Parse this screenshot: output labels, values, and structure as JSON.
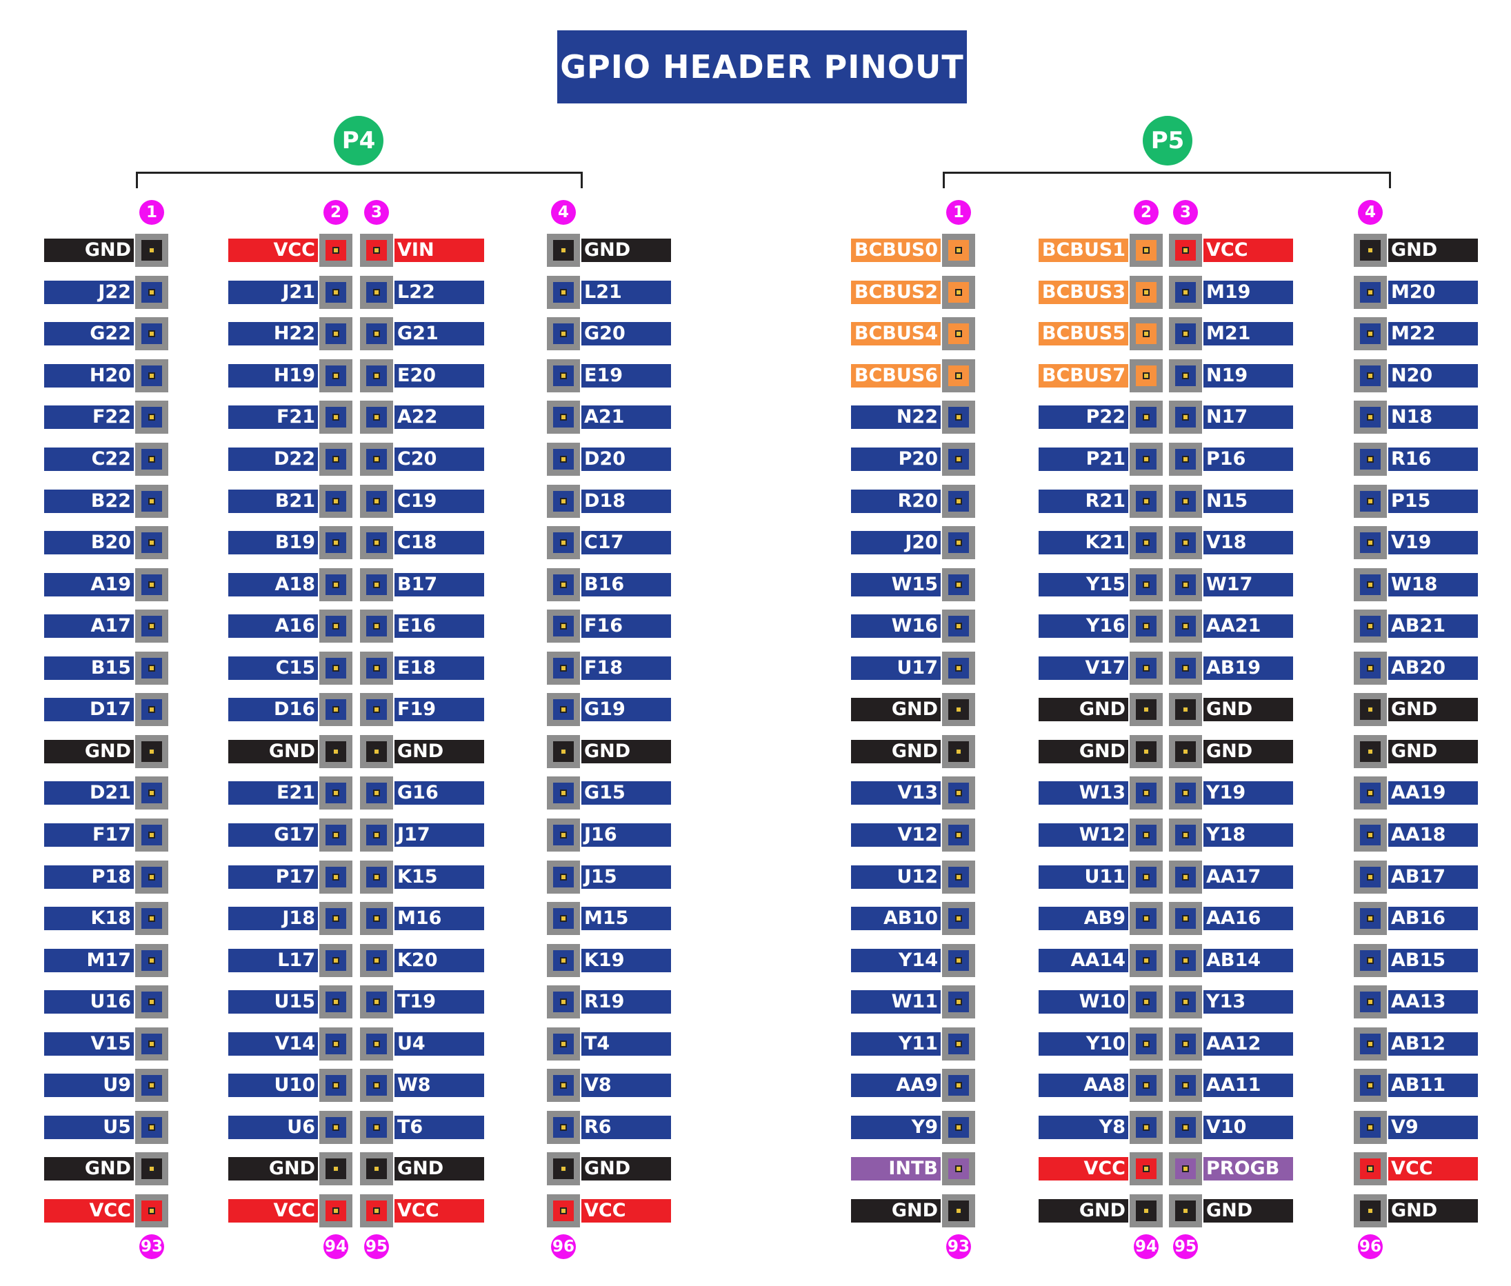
{
  "title": "GPIO HEADER PINOUT",
  "colors": {
    "signal": "#233f93",
    "gnd": "#231f20",
    "vcc": "#ec1f26",
    "bcbus": "#f7913e",
    "special": "#8e5ca8",
    "badge": "#19b96a",
    "pin_number": "#f20ef3",
    "pin_body": "#8d8d8d"
  },
  "headers": [
    {
      "name": "P4",
      "col_top_numbers": [
        "1",
        "2",
        "3",
        "4"
      ],
      "col_bottom_numbers": [
        "93",
        "94",
        "95",
        "96"
      ],
      "columns": [
        [
          "GND",
          "J22",
          "G22",
          "H20",
          "F22",
          "C22",
          "B22",
          "B20",
          "A19",
          "A17",
          "B15",
          "D17",
          "GND",
          "D21",
          "F17",
          "P18",
          "K18",
          "M17",
          "U16",
          "V15",
          "U9",
          "U5",
          "GND",
          "VCC"
        ],
        [
          "VCC",
          "J21",
          "H22",
          "H19",
          "F21",
          "D22",
          "B21",
          "B19",
          "A18",
          "A16",
          "C15",
          "D16",
          "GND",
          "E21",
          "G17",
          "P17",
          "J18",
          "L17",
          "U15",
          "V14",
          "U10",
          "U6",
          "GND",
          "VCC"
        ],
        [
          "VIN",
          "L22",
          "G21",
          "E20",
          "A22",
          "C20",
          "C19",
          "C18",
          "B17",
          "E16",
          "E18",
          "F19",
          "GND",
          "G16",
          "J17",
          "K15",
          "M16",
          "K20",
          "T19",
          "U4",
          "W8",
          "T6",
          "GND",
          "VCC"
        ],
        [
          "GND",
          "L21",
          "G20",
          "E19",
          "A21",
          "D20",
          "D18",
          "C17",
          "B16",
          "F16",
          "F18",
          "G19",
          "GND",
          "G15",
          "J16",
          "J15",
          "M15",
          "K19",
          "R19",
          "T4",
          "V8",
          "R6",
          "GND",
          "VCC"
        ]
      ]
    },
    {
      "name": "P5",
      "col_top_numbers": [
        "1",
        "2",
        "3",
        "4"
      ],
      "col_bottom_numbers": [
        "93",
        "94",
        "95",
        "96"
      ],
      "columns": [
        [
          "BCBUS0",
          "BCBUS2",
          "BCBUS4",
          "BCBUS6",
          "N22",
          "P20",
          "R20",
          "J20",
          "W15",
          "W16",
          "U17",
          "GND",
          "GND",
          "V13",
          "V12",
          "U12",
          "AB10",
          "Y14",
          "W11",
          "Y11",
          "AA9",
          "Y9",
          "INTB",
          "GND"
        ],
        [
          "BCBUS1",
          "BCBUS3",
          "BCBUS5",
          "BCBUS7",
          "P22",
          "P21",
          "R21",
          "K21",
          "Y15",
          "Y16",
          "V17",
          "GND",
          "GND",
          "W13",
          "W12",
          "U11",
          "AB9",
          "AA14",
          "W10",
          "Y10",
          "AA8",
          "Y8",
          "VCC",
          "GND"
        ],
        [
          "VCC",
          "M19",
          "M21",
          "N19",
          "N17",
          "P16",
          "N15",
          "V18",
          "W17",
          "AA21",
          "AB19",
          "GND",
          "GND",
          "Y19",
          "Y18",
          "AA17",
          "AA16",
          "AB14",
          "Y13",
          "AA12",
          "AA11",
          "V10",
          "PROGB",
          "GND"
        ],
        [
          "GND",
          "M20",
          "M22",
          "N20",
          "N18",
          "R16",
          "P15",
          "V19",
          "W18",
          "AB21",
          "AB20",
          "GND",
          "GND",
          "AA19",
          "AA18",
          "AB17",
          "AB16",
          "AB15",
          "AA13",
          "AB12",
          "AB11",
          "V9",
          "VCC",
          "GND"
        ]
      ]
    }
  ]
}
